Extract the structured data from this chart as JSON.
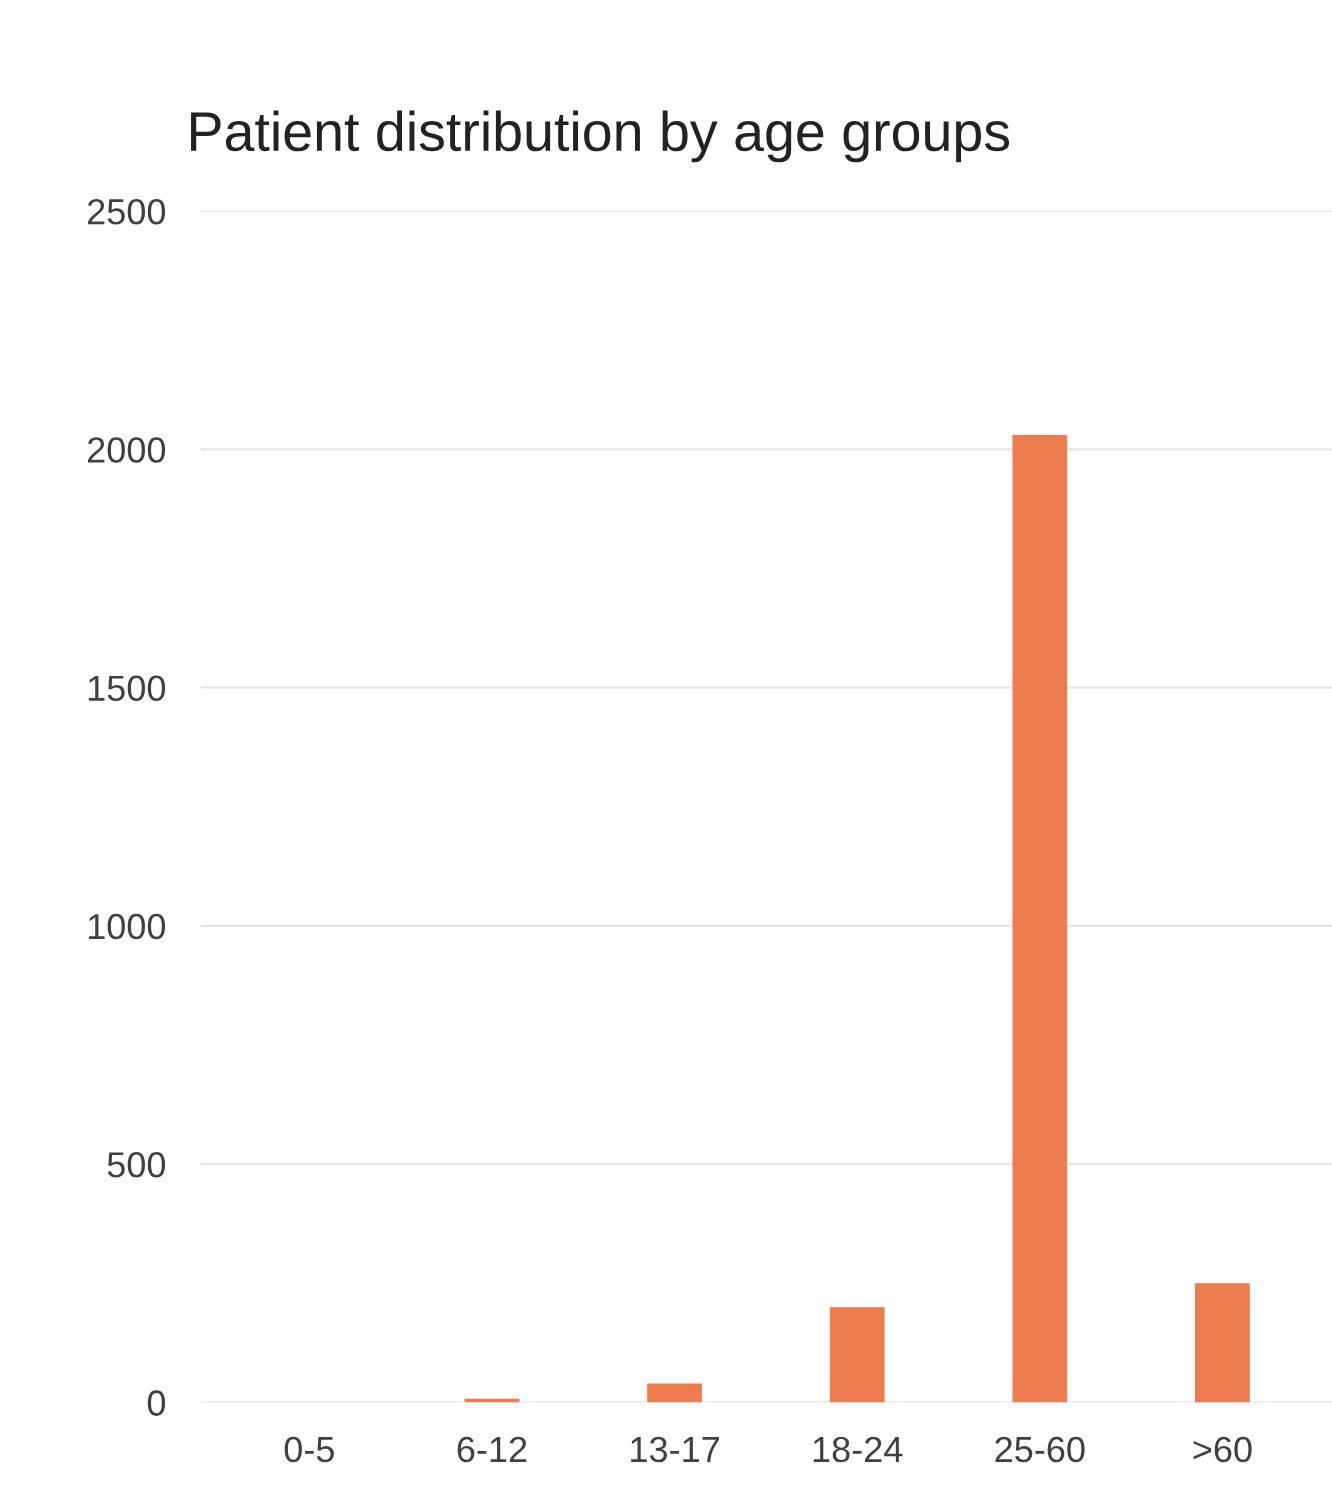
{
  "chart_data": {
    "type": "bar",
    "title": "Patient distribution by age groups",
    "categories": [
      "0-5",
      "6-12",
      "13-17",
      "18-24",
      "25-60",
      ">60"
    ],
    "values": [
      0,
      8,
      40,
      200,
      2030,
      250
    ],
    "color": "#ed7d4f",
    "ylim": [
      0,
      2500
    ],
    "yticks": [
      0,
      500,
      1000,
      1500,
      2000,
      2500
    ],
    "grid": "y"
  }
}
